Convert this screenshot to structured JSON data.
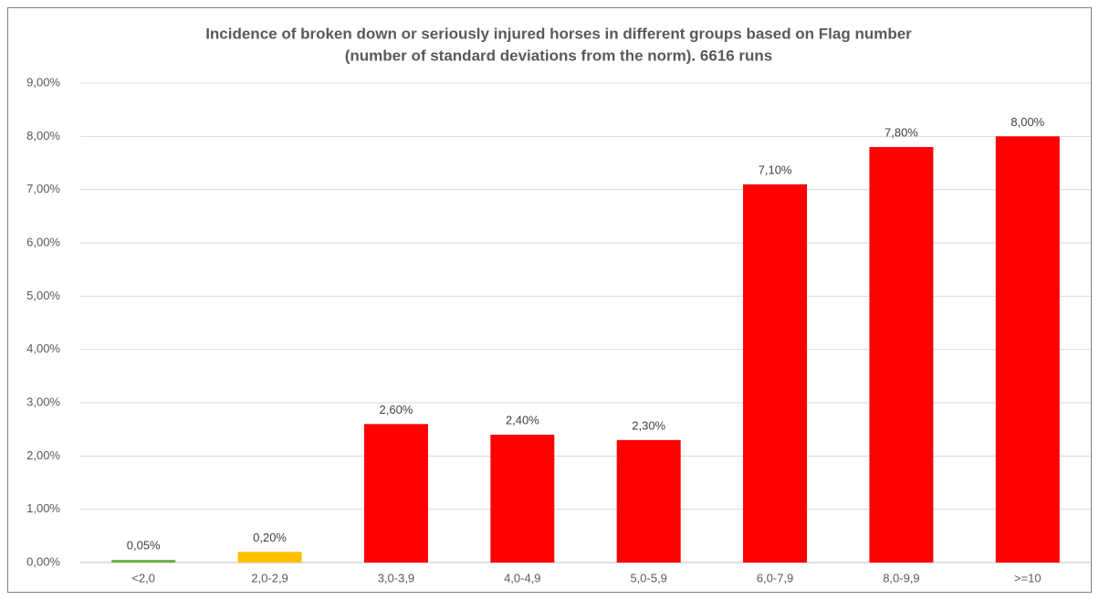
{
  "chart_data": {
    "type": "bar",
    "title": [
      "Incidence of broken down or seriously injured horses in different groups based on Flag number",
      "(number of standard deviations from the norm). 6616 runs"
    ],
    "categories": [
      "<2,0",
      "2,0-2,9",
      "3,0-3,9",
      "4,0-4,9",
      "5,0-5,9",
      "6,0-7,9",
      "8,0-9,9",
      ">=10"
    ],
    "values": [
      0.05,
      0.2,
      2.6,
      2.4,
      2.3,
      7.1,
      7.8,
      8.0
    ],
    "value_labels": [
      "0,05%",
      "0,20%",
      "2,60%",
      "2,40%",
      "2,30%",
      "7,10%",
      "7,80%",
      "8,00%"
    ],
    "colors": [
      "#70ad47",
      "#ffc000",
      "#ff0000",
      "#ff0000",
      "#ff0000",
      "#ff0000",
      "#ff0000",
      "#ff0000"
    ],
    "ylim": [
      0,
      9
    ],
    "yticks": [
      {
        "value": 0,
        "label": "0,00%"
      },
      {
        "value": 1,
        "label": "1,00%"
      },
      {
        "value": 2,
        "label": "2,00%"
      },
      {
        "value": 3,
        "label": "3,00%"
      },
      {
        "value": 4,
        "label": "4,00%"
      },
      {
        "value": 5,
        "label": "5,00%"
      },
      {
        "value": 6,
        "label": "6,00%"
      },
      {
        "value": 7,
        "label": "7,00%"
      },
      {
        "value": 8,
        "label": "8,00%"
      },
      {
        "value": 9,
        "label": "9,00%"
      }
    ],
    "grid": true
  }
}
